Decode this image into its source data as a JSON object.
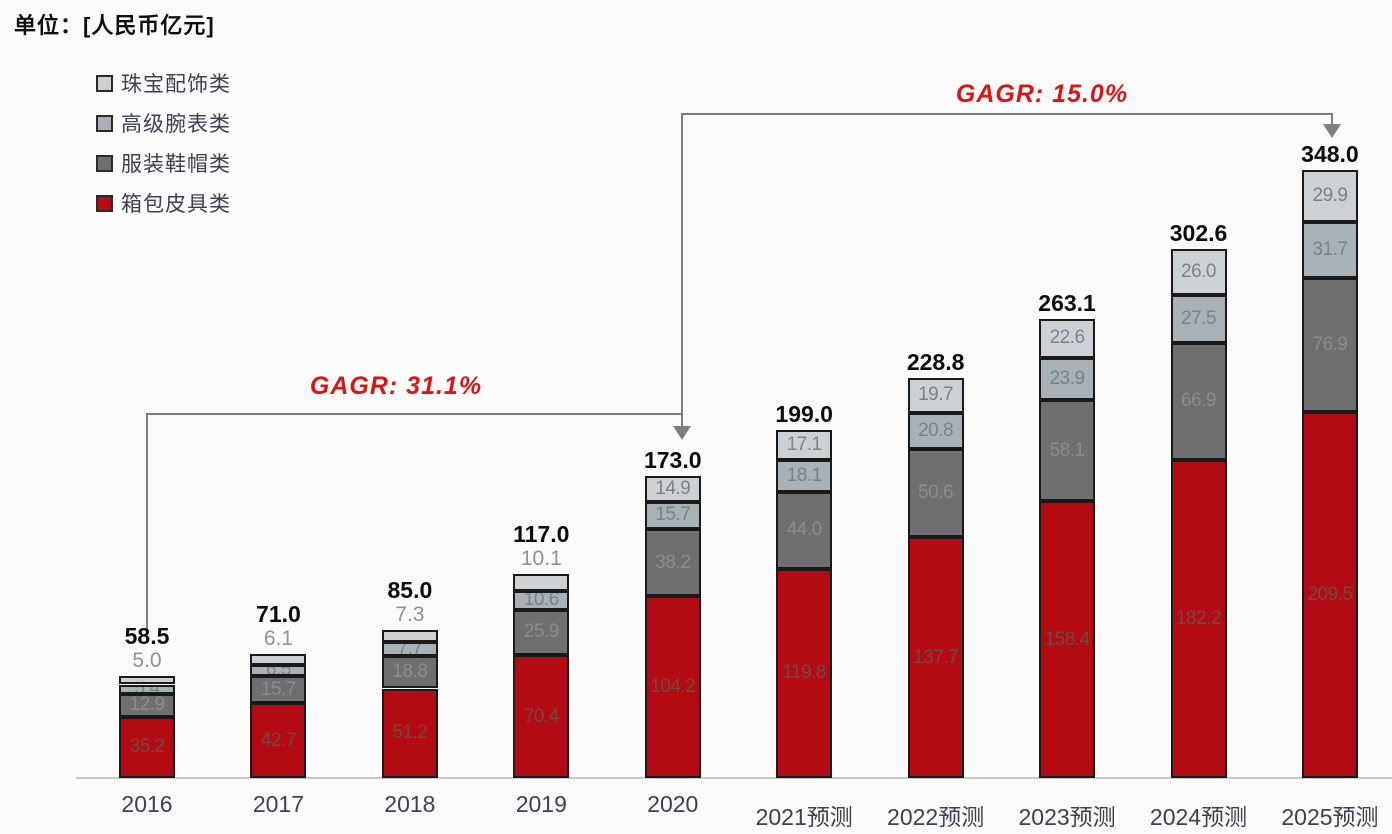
{
  "unit_label": "单位：[人民币亿元]",
  "legend": [
    {
      "label": "珠宝配饰类",
      "color": "#CBD1D4"
    },
    {
      "label": "高级腕表类",
      "color": "#A8B2B6"
    },
    {
      "label": "服装鞋帽类",
      "color": "#6F6F71"
    },
    {
      "label": "箱包皮具类",
      "color": "#B40A11"
    }
  ],
  "annotations": {
    "cagr1": {
      "label": "GAGR: 31.1%",
      "applies_to": "2016-2020"
    },
    "cagr2": {
      "label": "GAGR: 15.0%",
      "applies_to": "2020-2025"
    }
  },
  "chart_data": {
    "type": "bar",
    "stacked": true,
    "stack_order": "bottom-to-top",
    "title": "",
    "xlabel": "",
    "ylabel": "人民币亿元",
    "ylim": [
      0,
      360
    ],
    "grid": false,
    "legend_position": "top-left",
    "categories": [
      "2016",
      "2017",
      "2018",
      "2019",
      "2020",
      "2021预测",
      "2022预测",
      "2023预测",
      "2024预测",
      "2025预测"
    ],
    "series": [
      {
        "name": "箱包皮具类",
        "color": "#B40A11",
        "label_color": "#6e4a46",
        "values": [
          35.2,
          42.7,
          51.2,
          70.4,
          104.2,
          119.8,
          137.7,
          158.4,
          182.2,
          209.5
        ]
      },
      {
        "name": "服装鞋帽类",
        "color": "#6F6F71",
        "label_color": "#8c8c8e",
        "values": [
          12.9,
          15.7,
          18.8,
          25.9,
          38.2,
          44.0,
          50.6,
          58.1,
          66.9,
          76.9
        ]
      },
      {
        "name": "高级腕表类",
        "color": "#A8B2B6",
        "label_color": "#79838a",
        "values": [
          5.4,
          6.5,
          7.7,
          10.6,
          15.7,
          18.1,
          20.8,
          23.9,
          27.5,
          31.7
        ]
      },
      {
        "name": "珠宝配饰类",
        "color": "#CBD1D4",
        "label_color": "#7d8489",
        "values": [
          5.0,
          6.1,
          7.3,
          10.1,
          14.9,
          17.1,
          19.7,
          22.6,
          26.0,
          29.9
        ]
      }
    ],
    "totals": [
      58.5,
      71.0,
      85.0,
      117.0,
      173.0,
      199.0,
      228.8,
      263.1,
      302.6,
      348.0
    ]
  }
}
